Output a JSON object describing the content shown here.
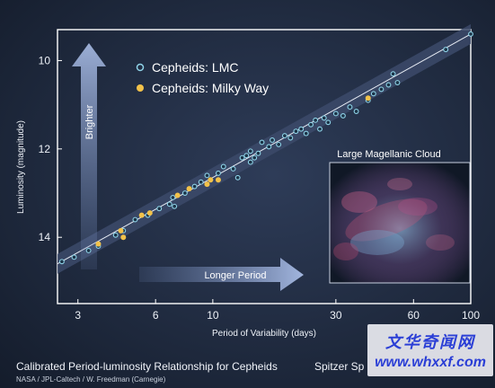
{
  "chart_data": {
    "type": "scatter",
    "xlabel": "Period of Variability (days)",
    "ylabel": "Luminosity (magnitude)",
    "x_scale": "log",
    "xlim": [
      2.5,
      100
    ],
    "ylim": [
      15.5,
      9.3
    ],
    "x_ticks": [
      "3",
      "6",
      "10",
      "30",
      "60",
      "100"
    ],
    "y_ticks": [
      "10",
      "12",
      "14"
    ],
    "grid": false,
    "legend_position": "top-left",
    "fit_line": {
      "x": [
        2.5,
        100
      ],
      "y": [
        14.6,
        9.4
      ]
    },
    "series": [
      {
        "name": "Cepheids: LMC",
        "color": "#8fd3e8",
        "points": [
          {
            "x": 2.6,
            "y": 14.55
          },
          {
            "x": 2.9,
            "y": 14.45
          },
          {
            "x": 3.3,
            "y": 14.3
          },
          {
            "x": 3.6,
            "y": 14.2
          },
          {
            "x": 4.2,
            "y": 13.95
          },
          {
            "x": 4.5,
            "y": 13.85
          },
          {
            "x": 5.0,
            "y": 13.6
          },
          {
            "x": 5.6,
            "y": 13.5
          },
          {
            "x": 6.2,
            "y": 13.35
          },
          {
            "x": 6.8,
            "y": 13.25
          },
          {
            "x": 7.0,
            "y": 13.1
          },
          {
            "x": 7.1,
            "y": 13.3
          },
          {
            "x": 7.8,
            "y": 13.0
          },
          {
            "x": 8.5,
            "y": 12.85
          },
          {
            "x": 9.0,
            "y": 12.75
          },
          {
            "x": 9.5,
            "y": 12.6
          },
          {
            "x": 10.5,
            "y": 12.55
          },
          {
            "x": 11.0,
            "y": 12.4
          },
          {
            "x": 12.0,
            "y": 12.45
          },
          {
            "x": 12.5,
            "y": 12.65
          },
          {
            "x": 13.0,
            "y": 12.2
          },
          {
            "x": 13.5,
            "y": 12.15
          },
          {
            "x": 14.0,
            "y": 12.3
          },
          {
            "x": 14.0,
            "y": 12.05
          },
          {
            "x": 14.5,
            "y": 12.2
          },
          {
            "x": 15.0,
            "y": 12.1
          },
          {
            "x": 15.5,
            "y": 11.85
          },
          {
            "x": 16.5,
            "y": 11.95
          },
          {
            "x": 17.0,
            "y": 11.8
          },
          {
            "x": 18.0,
            "y": 11.9
          },
          {
            "x": 19.0,
            "y": 11.7
          },
          {
            "x": 20.0,
            "y": 11.75
          },
          {
            "x": 21.0,
            "y": 11.6
          },
          {
            "x": 22.0,
            "y": 11.55
          },
          {
            "x": 23.0,
            "y": 11.65
          },
          {
            "x": 24.0,
            "y": 11.45
          },
          {
            "x": 25.0,
            "y": 11.35
          },
          {
            "x": 26.0,
            "y": 11.55
          },
          {
            "x": 27.0,
            "y": 11.3
          },
          {
            "x": 28.0,
            "y": 11.4
          },
          {
            "x": 30.0,
            "y": 11.2
          },
          {
            "x": 32.0,
            "y": 11.25
          },
          {
            "x": 34.0,
            "y": 11.05
          },
          {
            "x": 36.0,
            "y": 11.15
          },
          {
            "x": 40.0,
            "y": 10.9
          },
          {
            "x": 42.0,
            "y": 10.75
          },
          {
            "x": 45.0,
            "y": 10.65
          },
          {
            "x": 48.0,
            "y": 10.55
          },
          {
            "x": 50.0,
            "y": 10.3
          },
          {
            "x": 52.0,
            "y": 10.5
          },
          {
            "x": 80.0,
            "y": 9.75
          },
          {
            "x": 100.0,
            "y": 9.4
          }
        ]
      },
      {
        "name": "Cepheids: Milky Way",
        "color": "#f2c24a",
        "points": [
          {
            "x": 3.6,
            "y": 14.15
          },
          {
            "x": 4.4,
            "y": 13.85
          },
          {
            "x": 4.5,
            "y": 14.0
          },
          {
            "x": 5.3,
            "y": 13.5
          },
          {
            "x": 5.7,
            "y": 13.45
          },
          {
            "x": 7.3,
            "y": 13.05
          },
          {
            "x": 8.1,
            "y": 12.9
          },
          {
            "x": 9.5,
            "y": 12.8
          },
          {
            "x": 9.8,
            "y": 12.7
          },
          {
            "x": 10.5,
            "y": 12.7
          },
          {
            "x": 40.0,
            "y": 10.85
          }
        ]
      }
    ],
    "annotations": [
      "Brighter",
      "Longer Period",
      "Large Magellanic Cloud"
    ]
  },
  "caption": {
    "title": "Calibrated Period-luminosity Relationship for Cepheids",
    "mission": "Spitzer Sp",
    "credit": "NASA / JPL-Caltech / W. Freedman (Carnegie)"
  },
  "watermark": {
    "line1": "文华奇闻网",
    "line2": "www.whxxf.com"
  },
  "colors": {
    "band": "#3a4866",
    "fit_line": "#e8edf5",
    "arrow": "#8aa0c8"
  }
}
